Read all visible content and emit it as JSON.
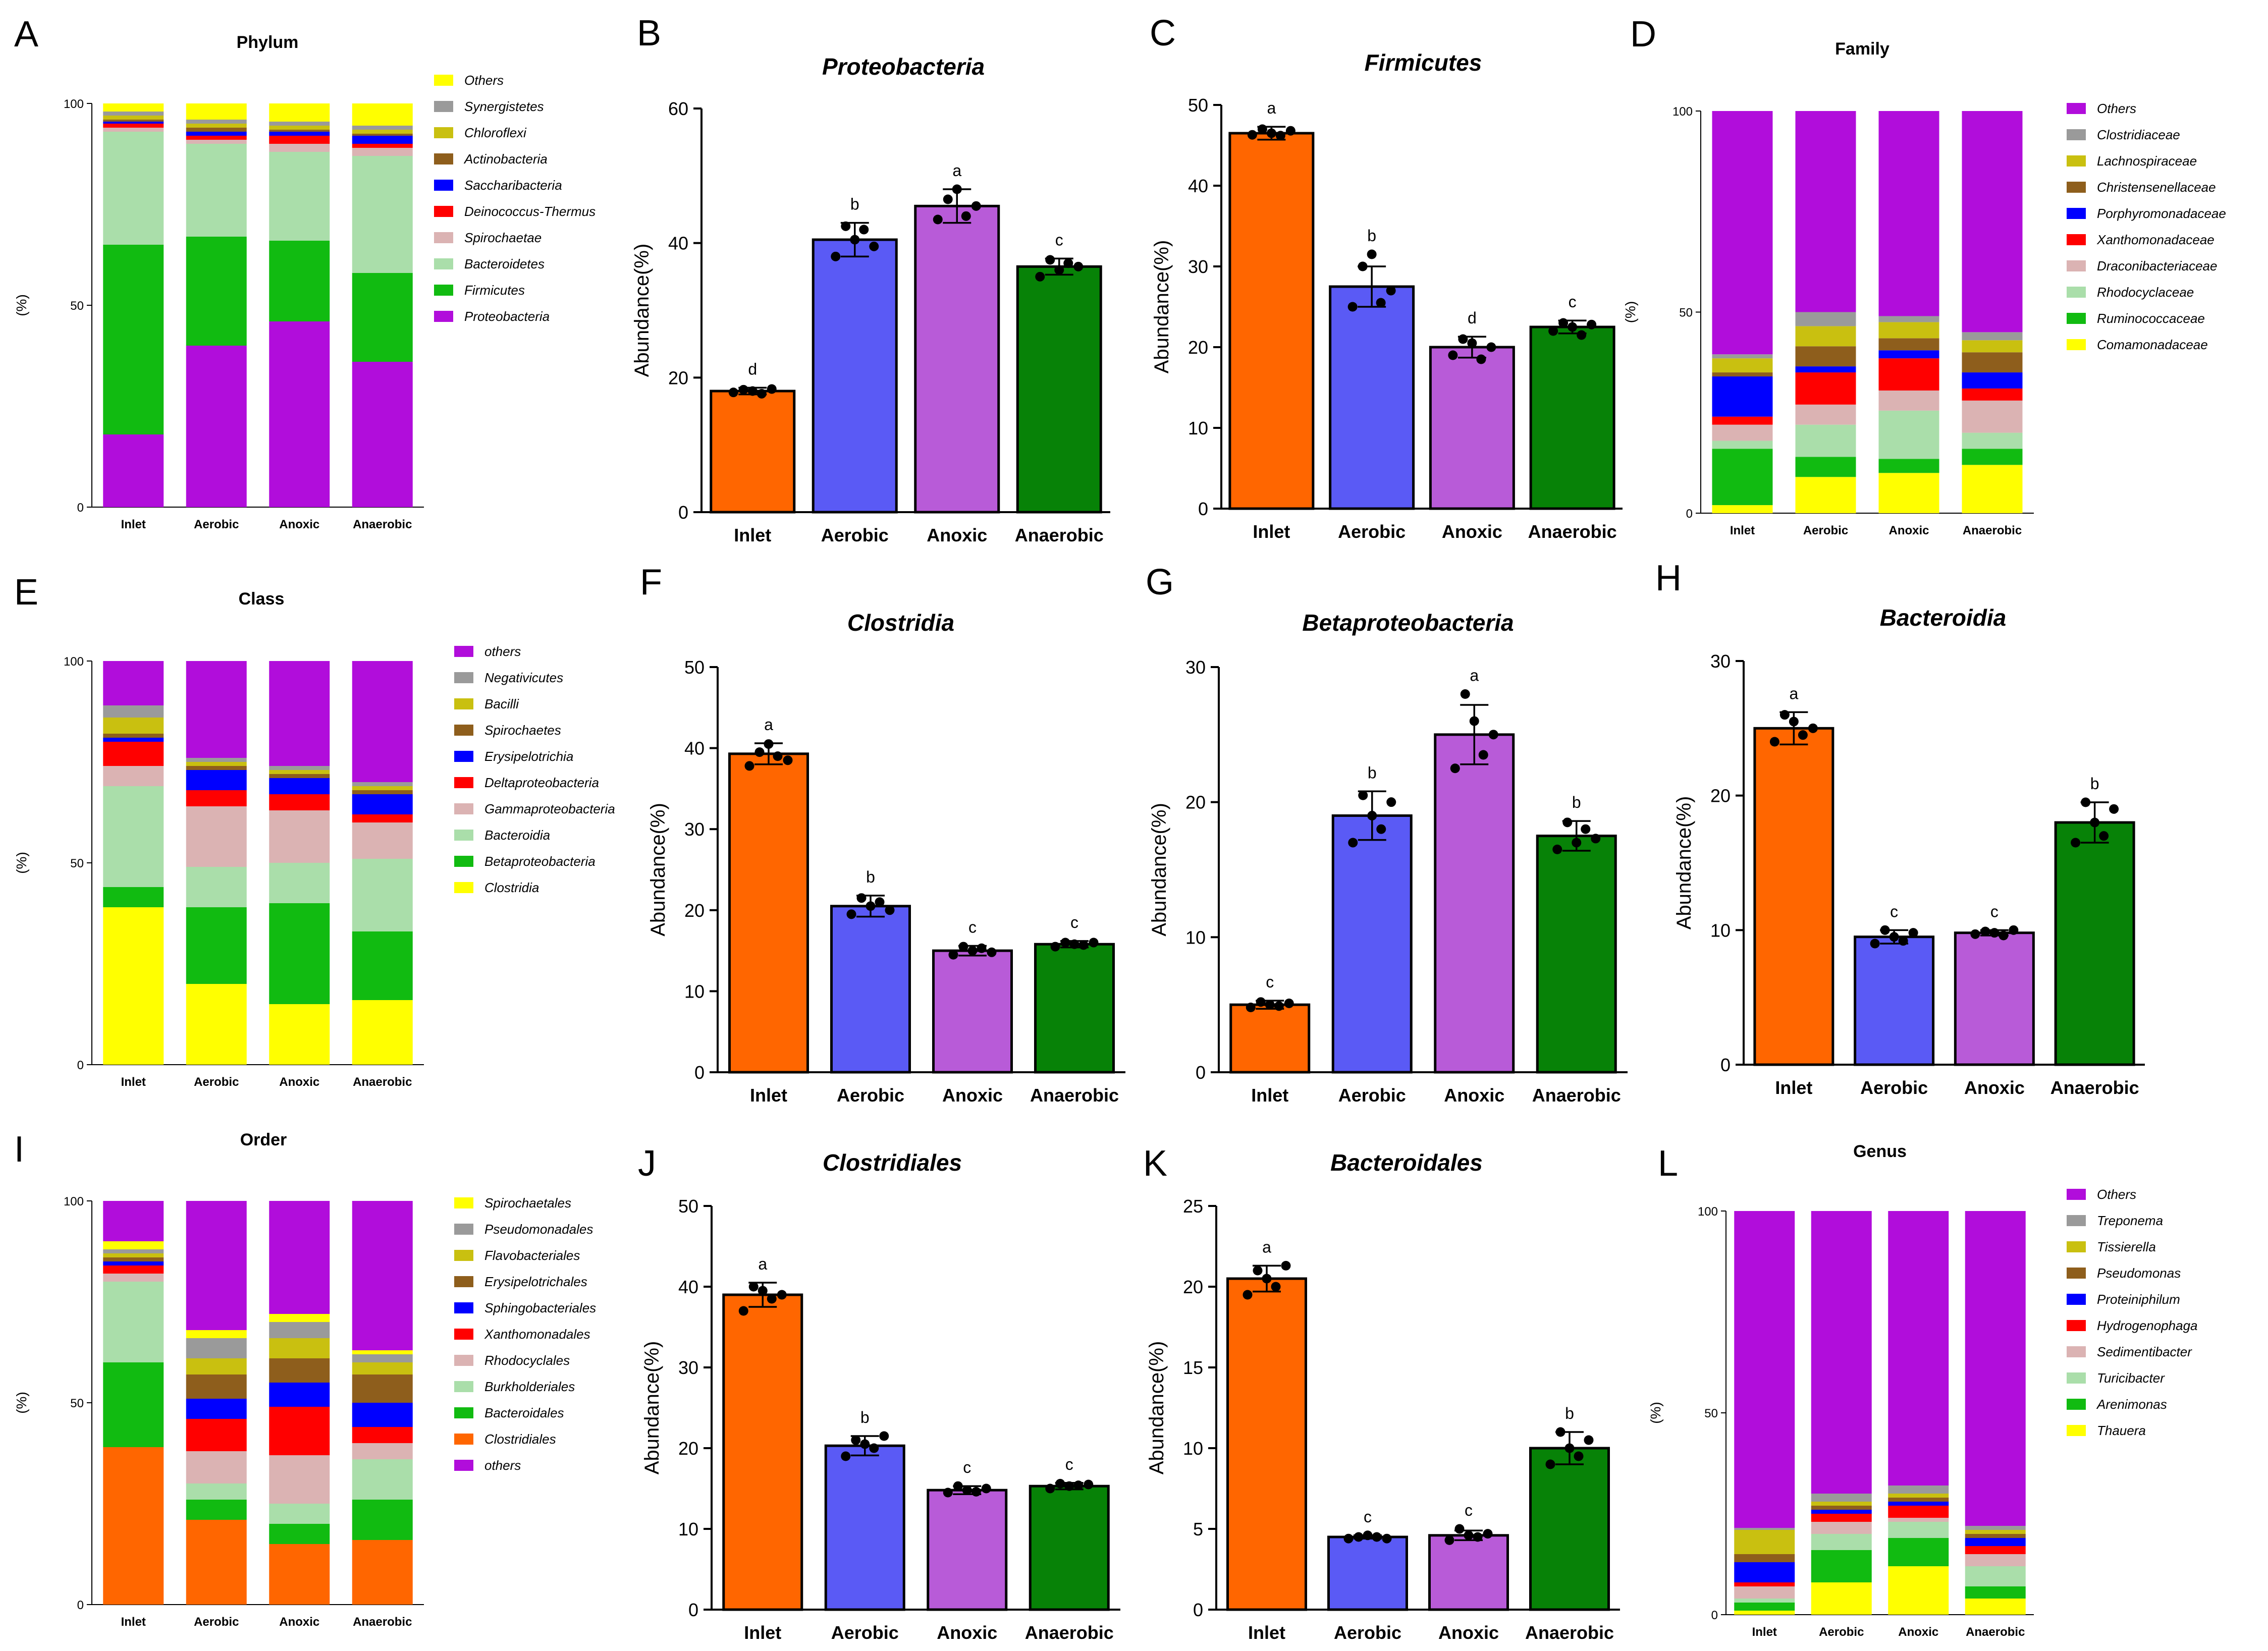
{
  "colors": {
    "inlet": "#ff6600",
    "aerobic": "#5a5af5",
    "anoxic": "#b85bd8",
    "anaerobic": "#078207",
    "purple": "#b10ddb",
    "yellow": "#ffff00",
    "green": "#11bb11",
    "lightgreen": "#aadeaa",
    "pink": "#dbb3b3",
    "red": "#ff0000",
    "blue": "#0000ff",
    "brown": "#8e5e1c",
    "olive": "#c9c010",
    "gray": "#9a9a9a",
    "orange": "#ff6600"
  },
  "chart_data": [
    {
      "id": "A",
      "letter": "A",
      "type": "stacked-bar",
      "title": "Phylum",
      "ylabel": "(%)",
      "ylim": [
        0,
        100
      ],
      "yticks": [
        0,
        50,
        100
      ],
      "categories": [
        "Inlet",
        "Aerobic",
        "Anoxic",
        "Anaerobic"
      ],
      "series": [
        {
          "name": "Proteobacteria",
          "color": "purple",
          "values": [
            18,
            40,
            46,
            36
          ]
        },
        {
          "name": "Firmicutes",
          "color": "green",
          "values": [
            47,
            27,
            20,
            22
          ]
        },
        {
          "name": "Bacteroidetes",
          "color": "lightgreen",
          "values": [
            28,
            23,
            22,
            29
          ]
        },
        {
          "name": "Spirochaetae",
          "color": "pink",
          "values": [
            1,
            1,
            2,
            2
          ]
        },
        {
          "name": "Deinococcus-Thermus",
          "color": "red",
          "values": [
            1,
            1,
            2,
            1
          ]
        },
        {
          "name": "Saccharibacteria",
          "color": "blue",
          "values": [
            0.5,
            1,
            1,
            2
          ]
        },
        {
          "name": "Actinobacteria",
          "color": "brown",
          "values": [
            0.5,
            1,
            0.5,
            0.5
          ]
        },
        {
          "name": "Chloroflexi",
          "color": "olive",
          "values": [
            1,
            1,
            1,
            1
          ]
        },
        {
          "name": "Synergistetes",
          "color": "gray",
          "values": [
            1,
            1,
            1,
            1
          ]
        },
        {
          "name": "Others",
          "color": "yellow",
          "values": [
            2,
            4,
            4.5,
            5.5
          ]
        }
      ]
    },
    {
      "id": "B",
      "letter": "B",
      "type": "bar",
      "title": "Proteobacteria",
      "ylabel": "Abundance(%)",
      "ylim": [
        0,
        60
      ],
      "yticks": [
        0,
        20,
        40,
        60
      ],
      "categories": [
        "Inlet",
        "Aerobic",
        "Anoxic",
        "Anaerobic"
      ],
      "values": [
        18,
        40.5,
        45.5,
        36.5
      ],
      "errors": [
        0.5,
        2.5,
        2.5,
        1.2
      ],
      "letters": [
        "d",
        "b",
        "a",
        "c"
      ],
      "points": [
        [
          17.8,
          18.2,
          18.0,
          17.6,
          18.3
        ],
        [
          38.0,
          42.5,
          40.5,
          42.0,
          39.5
        ],
        [
          43.5,
          46.5,
          48.0,
          44.0,
          45.5
        ],
        [
          35.0,
          37.5,
          36.0,
          37.0,
          36.5
        ]
      ]
    },
    {
      "id": "C",
      "letter": "C",
      "type": "bar",
      "title": "Firmicutes",
      "ylabel": "Abundance(%)",
      "ylim": [
        0,
        50
      ],
      "yticks": [
        0,
        10,
        20,
        30,
        40,
        50
      ],
      "categories": [
        "Inlet",
        "Aerobic",
        "Anoxic",
        "Anaerobic"
      ],
      "values": [
        46.5,
        27.5,
        20,
        22.5
      ],
      "errors": [
        0.8,
        2.5,
        1.3,
        0.8
      ],
      "letters": [
        "a",
        "b",
        "d",
        "c"
      ],
      "points": [
        [
          46.3,
          47.0,
          46.5,
          46.2,
          46.8
        ],
        [
          25.0,
          30.0,
          31.5,
          25.5,
          27.0
        ],
        [
          19.0,
          21.0,
          20.5,
          18.5,
          20.0
        ],
        [
          22.0,
          23.0,
          22.5,
          21.5,
          22.8
        ]
      ]
    },
    {
      "id": "D",
      "letter": "D",
      "type": "stacked-bar",
      "title": "Family",
      "ylabel": "(%)",
      "ylim": [
        0,
        100
      ],
      "yticks": [
        0,
        50,
        100
      ],
      "categories": [
        "Inlet",
        "Aerobic",
        "Anoxic",
        "Anaerobic"
      ],
      "series": [
        {
          "name": "Comamonadaceae",
          "color": "yellow",
          "values": [
            2,
            9,
            10,
            12
          ]
        },
        {
          "name": "Ruminococcaceae",
          "color": "green",
          "values": [
            14,
            5,
            3.5,
            4
          ]
        },
        {
          "name": "Rhodocyclaceae",
          "color": "lightgreen",
          "values": [
            2,
            8,
            12,
            4
          ]
        },
        {
          "name": "Draconibacteriaceae",
          "color": "pink",
          "values": [
            4,
            5,
            5,
            8
          ]
        },
        {
          "name": "Xanthomonadaceae",
          "color": "red",
          "values": [
            2,
            8,
            8,
            3
          ]
        },
        {
          "name": "Porphyromonadaceae",
          "color": "blue",
          "values": [
            10,
            1.5,
            2,
            4
          ]
        },
        {
          "name": "Christensenellaceae",
          "color": "brown",
          "values": [
            1,
            5,
            3,
            5
          ]
        },
        {
          "name": "Lachnospiraceae",
          "color": "olive",
          "values": [
            3.5,
            5,
            4,
            3
          ]
        },
        {
          "name": "Clostridiaceae",
          "color": "gray",
          "values": [
            1,
            3.5,
            1.5,
            2
          ]
        },
        {
          "name": "Others",
          "color": "purple",
          "values": [
            60.5,
            50,
            51,
            55
          ]
        }
      ]
    },
    {
      "id": "E",
      "letter": "E",
      "type": "stacked-bar",
      "title": "Class",
      "ylabel": "(%)",
      "ylim": [
        0,
        100
      ],
      "yticks": [
        0,
        50,
        100
      ],
      "categories": [
        "Inlet",
        "Aerobic",
        "Anoxic",
        "Anaerobic"
      ],
      "series": [
        {
          "name": "Clostridia",
          "color": "yellow",
          "values": [
            39,
            20,
            15,
            16
          ]
        },
        {
          "name": "Betaproteobacteria",
          "color": "green",
          "values": [
            5,
            19,
            25,
            17
          ]
        },
        {
          "name": "Bacteroidia",
          "color": "lightgreen",
          "values": [
            25,
            10,
            10,
            18
          ]
        },
        {
          "name": "Gammaproteobacteria",
          "color": "pink",
          "values": [
            5,
            15,
            13,
            9
          ]
        },
        {
          "name": "Deltaproteobacteria",
          "color": "red",
          "values": [
            6,
            4,
            4,
            2
          ]
        },
        {
          "name": "Erysipelotrichia",
          "color": "blue",
          "values": [
            1,
            5,
            4,
            5
          ]
        },
        {
          "name": "Spirochaetes",
          "color": "brown",
          "values": [
            1,
            1,
            1,
            1
          ]
        },
        {
          "name": "Bacilli",
          "color": "olive",
          "values": [
            4,
            1,
            1,
            1
          ]
        },
        {
          "name": "Negativicutes",
          "color": "gray",
          "values": [
            3,
            1,
            1,
            1
          ]
        },
        {
          "name": "others",
          "color": "purple",
          "values": [
            11,
            24,
            26,
            30
          ]
        }
      ]
    },
    {
      "id": "F",
      "letter": "F",
      "type": "bar",
      "title": "Clostridia",
      "ylabel": "Abundance(%)",
      "ylim": [
        0,
        50
      ],
      "yticks": [
        0,
        10,
        20,
        30,
        40,
        50
      ],
      "categories": [
        "Inlet",
        "Aerobic",
        "Anoxic",
        "Anaerobic"
      ],
      "values": [
        39.3,
        20.5,
        15,
        15.8
      ],
      "errors": [
        1.3,
        1.3,
        0.6,
        0.4
      ],
      "letters": [
        "a",
        "b",
        "c",
        "c"
      ],
      "points": [
        [
          37.8,
          39.5,
          40.5,
          39.0,
          38.5
        ],
        [
          19.5,
          21.5,
          20.5,
          21.0,
          20.0
        ],
        [
          14.5,
          15.5,
          15.0,
          15.3,
          14.8
        ],
        [
          15.5,
          16.0,
          15.8,
          15.7,
          16.0
        ]
      ]
    },
    {
      "id": "G",
      "letter": "G",
      "type": "bar",
      "title": "Betaproteobacteria",
      "ylabel": "Abundance(%)",
      "ylim": [
        0,
        30
      ],
      "yticks": [
        0,
        10,
        20,
        30
      ],
      "categories": [
        "Inlet",
        "Aerobic",
        "Anoxic",
        "Anaerobic"
      ],
      "values": [
        5,
        19,
        25,
        17.5
      ],
      "errors": [
        0.3,
        1.8,
        2.2,
        1.1
      ],
      "letters": [
        "c",
        "b",
        "a",
        "b"
      ],
      "points": [
        [
          4.8,
          5.2,
          5.0,
          4.9,
          5.1
        ],
        [
          17.0,
          20.5,
          19.0,
          18.0,
          20.0
        ],
        [
          22.5,
          28.0,
          26.0,
          23.5,
          25.0
        ],
        [
          16.5,
          18.5,
          17.0,
          18.0,
          17.3
        ]
      ]
    },
    {
      "id": "H",
      "letter": "H",
      "type": "bar",
      "title": "Bacteroidia",
      "ylabel": "Abundance(%)",
      "ylim": [
        0,
        30
      ],
      "yticks": [
        0,
        10,
        20,
        30
      ],
      "categories": [
        "Inlet",
        "Aerobic",
        "Anoxic",
        "Anaerobic"
      ],
      "values": [
        25,
        9.5,
        9.8,
        18
      ],
      "errors": [
        1.2,
        0.5,
        0.2,
        1.5
      ],
      "letters": [
        "a",
        "c",
        "c",
        "b"
      ],
      "points": [
        [
          24.0,
          26.0,
          25.5,
          24.5,
          25.0
        ],
        [
          9.0,
          10.0,
          9.5,
          9.2,
          9.8
        ],
        [
          9.7,
          9.9,
          9.8,
          9.6,
          10.0
        ],
        [
          16.5,
          19.5,
          18.0,
          17.0,
          19.0
        ]
      ]
    },
    {
      "id": "I",
      "letter": "I",
      "type": "stacked-bar",
      "title": "Order",
      "ylabel": "(%)",
      "ylim": [
        0,
        100
      ],
      "yticks": [
        0,
        50,
        100
      ],
      "categories": [
        "Inlet",
        "Aerobic",
        "Anoxic",
        "Anaerobic"
      ],
      "series": [
        {
          "name": "Clostridiales",
          "color": "orange",
          "values": [
            39,
            21,
            15,
            16
          ]
        },
        {
          "name": "Bacteroidales",
          "color": "green",
          "values": [
            21,
            5,
            5,
            10
          ]
        },
        {
          "name": "Burkholderiales",
          "color": "lightgreen",
          "values": [
            20,
            4,
            5,
            10
          ]
        },
        {
          "name": "Rhodocyclales",
          "color": "pink",
          "values": [
            2,
            8,
            12,
            4
          ]
        },
        {
          "name": "Xanthomonadales",
          "color": "red",
          "values": [
            2,
            8,
            12,
            4
          ]
        },
        {
          "name": "Sphingobacteriales",
          "color": "blue",
          "values": [
            1,
            5,
            6,
            6
          ]
        },
        {
          "name": "Erysipelotrichales",
          "color": "brown",
          "values": [
            1,
            6,
            6,
            7
          ]
        },
        {
          "name": "Flavobacteriales",
          "color": "olive",
          "values": [
            1,
            4,
            5,
            3
          ]
        },
        {
          "name": "Pseudomonadales",
          "color": "gray",
          "values": [
            1,
            5,
            4,
            2
          ]
        },
        {
          "name": "Spirochaetales",
          "color": "yellow",
          "values": [
            2,
            2,
            2,
            1
          ]
        },
        {
          "name": "others",
          "color": "purple",
          "values": [
            10,
            32,
            28,
            37
          ]
        }
      ]
    },
    {
      "id": "J",
      "letter": "J",
      "type": "bar",
      "title": "Clostridiales",
      "ylabel": "Abundance(%)",
      "ylim": [
        0,
        50
      ],
      "yticks": [
        0,
        10,
        20,
        30,
        40,
        50
      ],
      "categories": [
        "Inlet",
        "Aerobic",
        "Anoxic",
        "Anaerobic"
      ],
      "values": [
        39,
        20.3,
        14.8,
        15.3
      ],
      "errors": [
        1.5,
        1.2,
        0.5,
        0.4
      ],
      "letters": [
        "a",
        "b",
        "c",
        "c"
      ],
      "points": [
        [
          37.0,
          40.0,
          39.5,
          38.5,
          39.0
        ],
        [
          19.0,
          21.0,
          20.5,
          20.0,
          21.5
        ],
        [
          14.5,
          15.3,
          14.8,
          14.6,
          15.0
        ],
        [
          15.0,
          15.6,
          15.3,
          15.4,
          15.5
        ]
      ]
    },
    {
      "id": "K",
      "letter": "K",
      "type": "bar",
      "title": "Bacteroidales",
      "ylabel": "Abundance(%)",
      "ylim": [
        0,
        25
      ],
      "yticks": [
        0,
        5,
        10,
        15,
        20,
        25
      ],
      "categories": [
        "Inlet",
        "Aerobic",
        "Anoxic",
        "Anaerobic"
      ],
      "values": [
        20.5,
        4.5,
        4.6,
        10
      ],
      "errors": [
        0.8,
        0.1,
        0.3,
        1.0
      ],
      "letters": [
        "a",
        "c",
        "c",
        "b"
      ],
      "points": [
        [
          19.5,
          21.0,
          20.5,
          20.0,
          21.3
        ],
        [
          4.4,
          4.5,
          4.6,
          4.5,
          4.4
        ],
        [
          4.3,
          5.0,
          4.6,
          4.5,
          4.7
        ],
        [
          9.0,
          11.0,
          10.0,
          9.5,
          10.5
        ]
      ]
    },
    {
      "id": "L",
      "letter": "L",
      "type": "stacked-bar",
      "title": "Genus",
      "ylabel": "(%)",
      "ylim": [
        0,
        100
      ],
      "yticks": [
        0,
        50,
        100
      ],
      "categories": [
        "Inlet",
        "Aerobic",
        "Anoxic",
        "Anaerobic"
      ],
      "series": [
        {
          "name": "Thauera",
          "color": "yellow",
          "values": [
            1,
            8,
            12,
            4
          ]
        },
        {
          "name": "Arenimonas",
          "color": "green",
          "values": [
            2,
            8,
            7,
            3
          ]
        },
        {
          "name": "Turicibacter",
          "color": "lightgreen",
          "values": [
            1,
            4,
            4,
            5
          ]
        },
        {
          "name": "Sedimentibacter",
          "color": "pink",
          "values": [
            3,
            3,
            1,
            3
          ]
        },
        {
          "name": "Hydrogenophaga",
          "color": "red",
          "values": [
            1,
            2,
            3,
            2
          ]
        },
        {
          "name": "Proteiniphilum",
          "color": "blue",
          "values": [
            5,
            1,
            1,
            2
          ]
        },
        {
          "name": "Pseudomonas",
          "color": "brown",
          "values": [
            2,
            1,
            1,
            1
          ]
        },
        {
          "name": "Tissierella",
          "color": "olive",
          "values": [
            6,
            1,
            1,
            1
          ]
        },
        {
          "name": "Treponema",
          "color": "gray",
          "values": [
            0.5,
            2,
            2,
            1
          ]
        },
        {
          "name": "Others",
          "color": "purple",
          "values": [
            78.5,
            70,
            68,
            78
          ]
        }
      ]
    }
  ]
}
